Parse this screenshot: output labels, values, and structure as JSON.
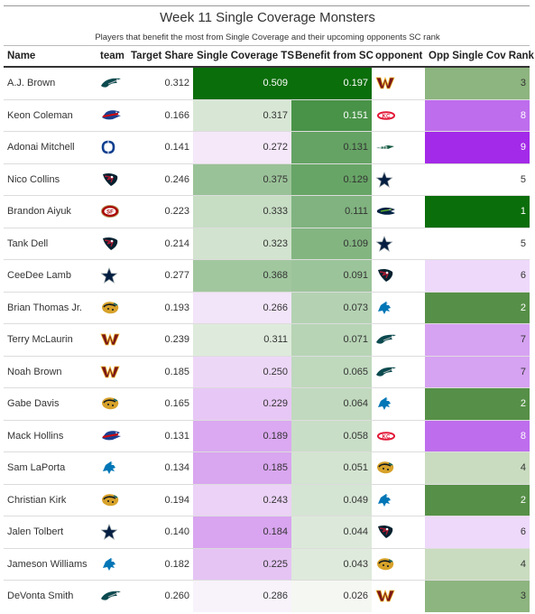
{
  "title": "Week 11 Single Coverage Monsters",
  "subtitle": "Players that benefit the most from Single Coverage and their upcoming opponents SC rank",
  "columns": [
    "Name",
    "team",
    "Target Share",
    "Single Coverage TS",
    "Benefit from SC",
    "opponent",
    "Opp Single Cov Rank"
  ],
  "chart_data": {
    "type": "table",
    "rows": [
      {
        "name": "A.J. Brown",
        "team": "eagles-logo",
        "target_share": "0.312",
        "sc_ts": "0.509",
        "benefit": "0.197",
        "opponent": "commanders-logo",
        "opp_rank": "3"
      },
      {
        "name": "Keon Coleman",
        "team": "bills-logo",
        "target_share": "0.166",
        "sc_ts": "0.317",
        "benefit": "0.151",
        "opponent": "chiefs-logo",
        "opp_rank": "8"
      },
      {
        "name": "Adonai Mitchell",
        "team": "colts-logo",
        "target_share": "0.141",
        "sc_ts": "0.272",
        "benefit": "0.131",
        "opponent": "jets-logo",
        "opp_rank": "9"
      },
      {
        "name": "Nico Collins",
        "team": "texans-logo",
        "target_share": "0.246",
        "sc_ts": "0.375",
        "benefit": "0.129",
        "opponent": "cowboys-logo",
        "opp_rank": "5"
      },
      {
        "name": "Brandon Aiyuk",
        "team": "49ers-logo",
        "target_share": "0.223",
        "sc_ts": "0.333",
        "benefit": "0.111",
        "opponent": "seahawks-logo",
        "opp_rank": "1"
      },
      {
        "name": "Tank Dell",
        "team": "texans-logo",
        "target_share": "0.214",
        "sc_ts": "0.323",
        "benefit": "0.109",
        "opponent": "cowboys-logo",
        "opp_rank": "5"
      },
      {
        "name": "CeeDee Lamb",
        "team": "cowboys-logo",
        "target_share": "0.277",
        "sc_ts": "0.368",
        "benefit": "0.091",
        "opponent": "texans-logo",
        "opp_rank": "6"
      },
      {
        "name": "Brian Thomas Jr.",
        "team": "jaguars-logo",
        "target_share": "0.193",
        "sc_ts": "0.266",
        "benefit": "0.073",
        "opponent": "lions-logo",
        "opp_rank": "2"
      },
      {
        "name": "Terry McLaurin",
        "team": "commanders-logo",
        "target_share": "0.239",
        "sc_ts": "0.311",
        "benefit": "0.071",
        "opponent": "eagles-logo",
        "opp_rank": "7"
      },
      {
        "name": "Noah Brown",
        "team": "commanders-logo",
        "target_share": "0.185",
        "sc_ts": "0.250",
        "benefit": "0.065",
        "opponent": "eagles-logo",
        "opp_rank": "7"
      },
      {
        "name": "Gabe Davis",
        "team": "jaguars-logo",
        "target_share": "0.165",
        "sc_ts": "0.229",
        "benefit": "0.064",
        "opponent": "lions-logo",
        "opp_rank": "2"
      },
      {
        "name": "Mack Hollins",
        "team": "bills-logo",
        "target_share": "0.131",
        "sc_ts": "0.189",
        "benefit": "0.058",
        "opponent": "chiefs-logo",
        "opp_rank": "8"
      },
      {
        "name": "Sam LaPorta",
        "team": "lions-logo",
        "target_share": "0.134",
        "sc_ts": "0.185",
        "benefit": "0.051",
        "opponent": "jaguars-logo",
        "opp_rank": "4"
      },
      {
        "name": "Christian Kirk",
        "team": "jaguars-logo",
        "target_share": "0.194",
        "sc_ts": "0.243",
        "benefit": "0.049",
        "opponent": "lions-logo",
        "opp_rank": "2"
      },
      {
        "name": "Jalen Tolbert",
        "team": "cowboys-logo",
        "target_share": "0.140",
        "sc_ts": "0.184",
        "benefit": "0.044",
        "opponent": "texans-logo",
        "opp_rank": "6"
      },
      {
        "name": "Jameson Williams",
        "team": "lions-logo",
        "target_share": "0.182",
        "sc_ts": "0.225",
        "benefit": "0.043",
        "opponent": "jaguars-logo",
        "opp_rank": "4"
      },
      {
        "name": "DeVonta Smith",
        "team": "eagles-logo",
        "target_share": "0.260",
        "sc_ts": "0.286",
        "benefit": "0.026",
        "opponent": "commanders-logo",
        "opp_rank": "3"
      }
    ]
  }
}
